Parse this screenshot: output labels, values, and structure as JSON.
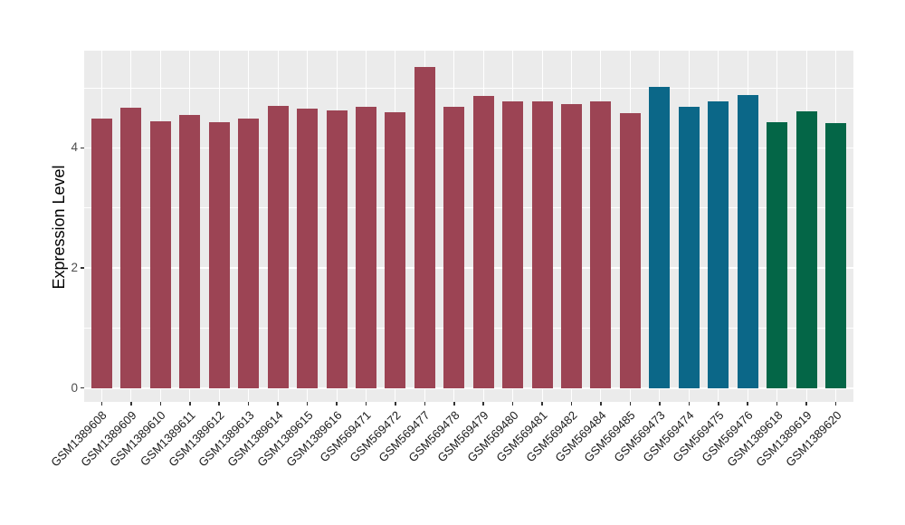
{
  "chart_data": {
    "type": "bar",
    "title": "",
    "xlabel": "",
    "ylabel": "Expression Level",
    "categories": [
      "GSM1389608",
      "GSM1389609",
      "GSM1389610",
      "GSM1389611",
      "GSM1389612",
      "GSM1389613",
      "GSM1389614",
      "GSM1389615",
      "GSM1389616",
      "GSM569471",
      "GSM569472",
      "GSM569477",
      "GSM569478",
      "GSM569479",
      "GSM569480",
      "GSM569481",
      "GSM569482",
      "GSM569484",
      "GSM569485",
      "GSM569473",
      "GSM569474",
      "GSM569475",
      "GSM569476",
      "GSM1389618",
      "GSM1389619",
      "GSM1389620"
    ],
    "values": [
      4.49,
      4.67,
      4.45,
      4.55,
      4.43,
      4.49,
      4.7,
      4.65,
      4.63,
      4.69,
      4.6,
      5.35,
      4.68,
      4.87,
      4.77,
      4.78,
      4.73,
      4.78,
      4.58,
      5.01,
      4.68,
      4.78,
      4.88,
      4.43,
      4.61,
      4.41
    ],
    "bar_group_index": [
      0,
      0,
      0,
      0,
      0,
      0,
      0,
      0,
      0,
      0,
      0,
      0,
      0,
      0,
      0,
      0,
      0,
      0,
      0,
      1,
      1,
      1,
      1,
      2,
      2,
      2
    ],
    "group_colors": [
      "#9C4454",
      "#0B6788",
      "#046647"
    ],
    "ylim": [
      -0.23,
      5.62
    ],
    "yticks": [
      0,
      2,
      4
    ],
    "ytick_labels": [
      "0",
      "2",
      "4"
    ],
    "yticks_minor": [
      1,
      3,
      5
    ],
    "x_label_rotation": 45,
    "legend": "none",
    "grid": "on",
    "panel_bg": "#EBEBEB",
    "grid_color": "#FFFFFF",
    "tick_color": "#333333"
  }
}
